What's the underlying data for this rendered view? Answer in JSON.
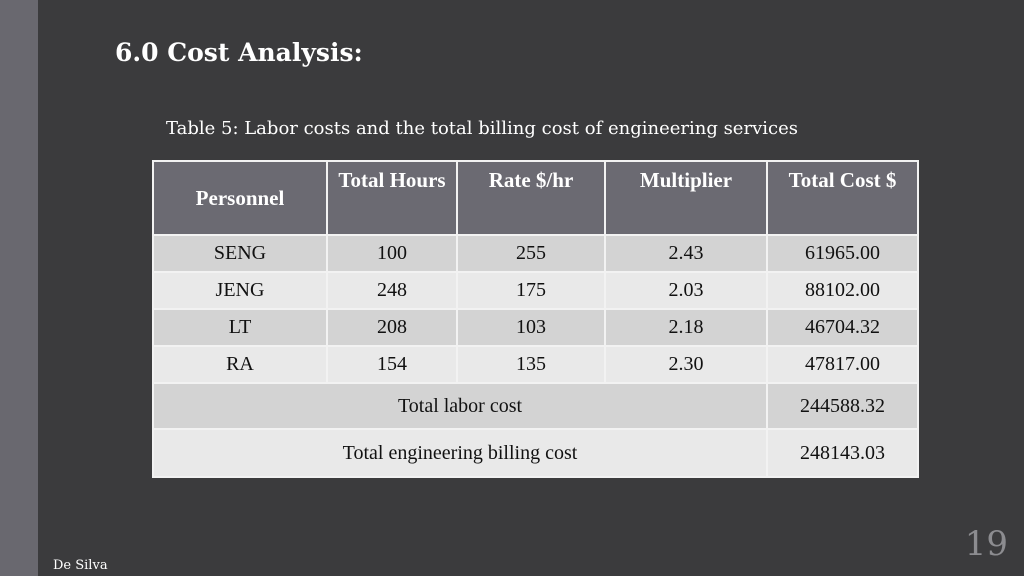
{
  "title": "6.0 Cost Analysis:",
  "caption": "Table 5: Labor costs and the total billing cost of engineering services",
  "table": {
    "headers": [
      "Personnel",
      "Total Hours",
      "Rate $/hr",
      "Multiplier",
      "Total Cost $"
    ],
    "rows": [
      [
        "SENG",
        "100",
        "255",
        "2.43",
        "61965.00"
      ],
      [
        "JENG",
        "248",
        "175",
        "2.03",
        "88102.00"
      ],
      [
        "LT",
        "208",
        "103",
        "2.18",
        "46704.32"
      ],
      [
        "RA",
        "154",
        "135",
        "2.30",
        "47817.00"
      ]
    ],
    "total_labor_label": "Total labor cost",
    "total_labor_value": "244588.32",
    "total_billing_label": "Total engineering billing cost",
    "total_billing_value": "248143.03"
  },
  "footer": "De Silva",
  "page_number": "19"
}
